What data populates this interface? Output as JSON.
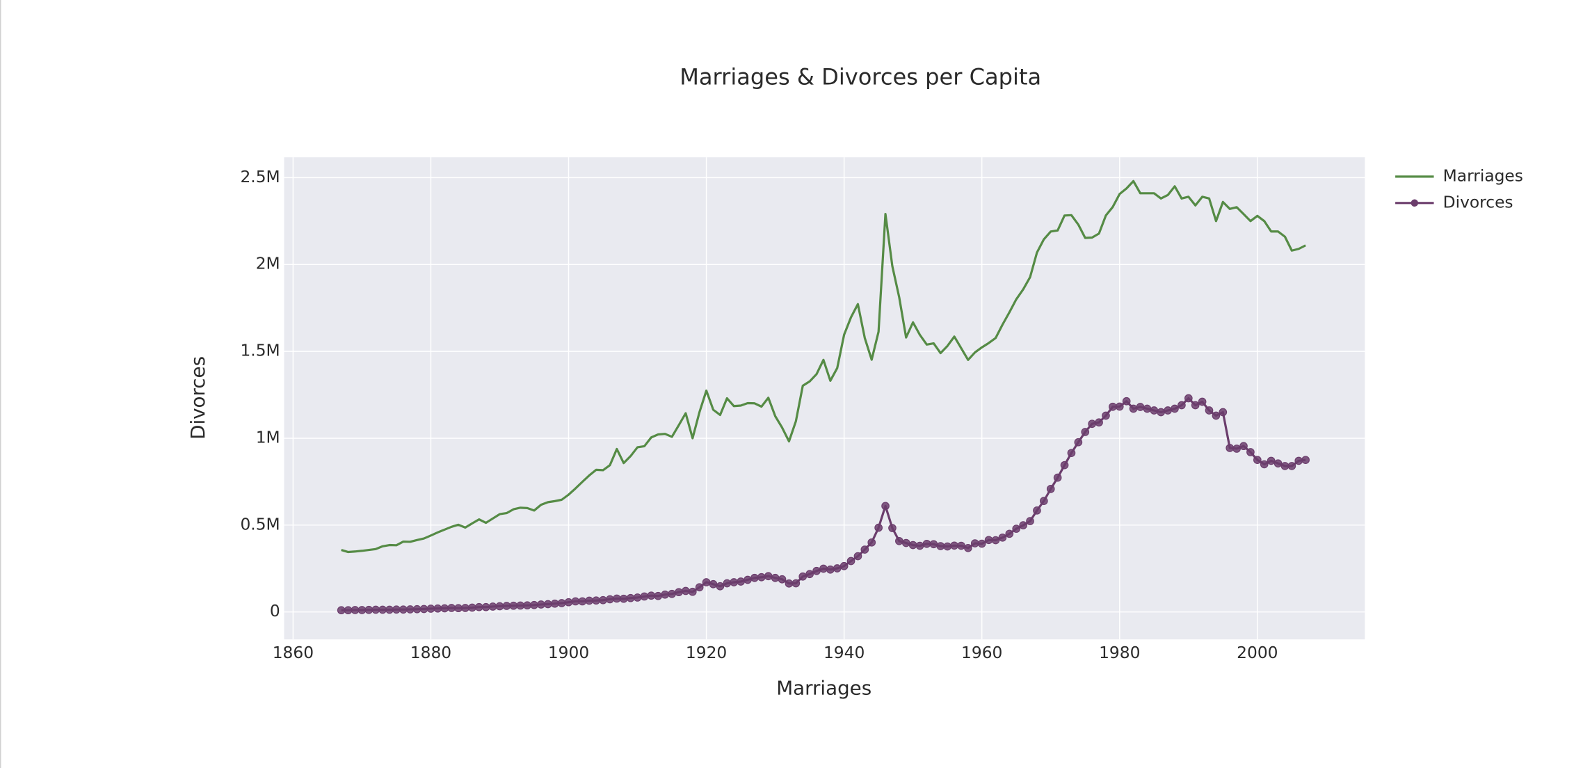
{
  "chart_data": {
    "type": "line",
    "title": "Marriages & Divorces per Capita",
    "xlabel": "Marriages",
    "ylabel": "Divorces",
    "x": [
      1867,
      1868,
      1869,
      1870,
      1871,
      1872,
      1873,
      1874,
      1875,
      1876,
      1877,
      1878,
      1879,
      1880,
      1881,
      1882,
      1883,
      1884,
      1885,
      1886,
      1887,
      1888,
      1889,
      1890,
      1891,
      1892,
      1893,
      1894,
      1895,
      1896,
      1897,
      1898,
      1899,
      1900,
      1901,
      1902,
      1903,
      1904,
      1905,
      1906,
      1907,
      1908,
      1909,
      1910,
      1911,
      1912,
      1913,
      1914,
      1915,
      1916,
      1917,
      1918,
      1919,
      1920,
      1921,
      1922,
      1923,
      1924,
      1925,
      1926,
      1927,
      1928,
      1929,
      1930,
      1931,
      1932,
      1933,
      1934,
      1935,
      1936,
      1937,
      1938,
      1939,
      1940,
      1941,
      1942,
      1943,
      1944,
      1945,
      1946,
      1947,
      1948,
      1949,
      1950,
      1951,
      1952,
      1953,
      1954,
      1955,
      1956,
      1957,
      1958,
      1959,
      1960,
      1961,
      1962,
      1963,
      1964,
      1965,
      1966,
      1967,
      1968,
      1969,
      1970,
      1971,
      1972,
      1973,
      1974,
      1975,
      1976,
      1977,
      1978,
      1979,
      1980,
      1981,
      1982,
      1983,
      1984,
      1985,
      1986,
      1987,
      1988,
      1989,
      1990,
      1991,
      1992,
      1993,
      1994,
      1995,
      1996,
      1997,
      1998,
      1999,
      2000,
      2001,
      2002,
      2003,
      2004,
      2005,
      2006,
      2007
    ],
    "series": [
      {
        "name": "Marriages",
        "color": "#558b45",
        "markers": false,
        "values": [
          357000,
          345000,
          348000,
          352000,
          357000,
          362000,
          378000,
          385000,
          384000,
          405000,
          404000,
          414000,
          423000,
          440000,
          458000,
          474000,
          490000,
          502000,
          486000,
          510000,
          533000,
          513000,
          538000,
          563000,
          569000,
          591000,
          600000,
          598000,
          584000,
          617000,
          632000,
          638000,
          646000,
          675000,
          711000,
          749000,
          786000,
          818000,
          816000,
          845000,
          938000,
          857000,
          897000,
          948000,
          954000,
          1005000,
          1022000,
          1025000,
          1008000,
          1075000,
          1144000,
          1000000,
          1150000,
          1274000,
          1164000,
          1134000,
          1230000,
          1185000,
          1188000,
          1202000,
          1201000,
          1182000,
          1233000,
          1127000,
          1061000,
          982000,
          1098000,
          1302000,
          1327000,
          1369000,
          1451000,
          1331000,
          1404000,
          1596000,
          1696000,
          1772000,
          1577000,
          1452000,
          1613000,
          2291000,
          1991000,
          1811000,
          1580000,
          1667000,
          1595000,
          1539000,
          1546000,
          1490000,
          1531000,
          1585000,
          1518000,
          1451000,
          1494000,
          1523000,
          1548000,
          1577000,
          1654000,
          1725000,
          1800000,
          1857000,
          1927000,
          2069000,
          2145000,
          2190000,
          2196000,
          2282000,
          2284000,
          2230000,
          2153000,
          2155000,
          2178000,
          2282000,
          2331000,
          2406000,
          2438000,
          2480000,
          2410000,
          2410000,
          2410000,
          2380000,
          2400000,
          2450000,
          2380000,
          2390000,
          2340000,
          2390000,
          2380000,
          2250000,
          2360000,
          2320000,
          2330000,
          2290000,
          2250000,
          2280000,
          2250000,
          2190000,
          2190000,
          2160000,
          2080000,
          2090000,
          2110000
        ]
      },
      {
        "name": "Divorces",
        "color": "#6b3d6c",
        "markers": true,
        "values": [
          10000,
          10000,
          11000,
          11000,
          12000,
          13000,
          13000,
          13000,
          14000,
          14000,
          15000,
          16000,
          17000,
          19000,
          20000,
          21000,
          23000,
          22000,
          23000,
          25000,
          28000,
          28000,
          31000,
          33000,
          35000,
          36000,
          37000,
          38000,
          40000,
          43000,
          45000,
          48000,
          51000,
          56000,
          61000,
          61000,
          65000,
          66000,
          68000,
          73000,
          77000,
          76000,
          80000,
          83000,
          89000,
          94000,
          92000,
          100000,
          104000,
          114000,
          121000,
          116000,
          142000,
          171000,
          160000,
          148000,
          165000,
          171000,
          175000,
          185000,
          196000,
          200000,
          206000,
          196000,
          188000,
          164000,
          165000,
          204000,
          218000,
          236000,
          249000,
          244000,
          251000,
          264000,
          293000,
          321000,
          359000,
          400000,
          485000,
          610000,
          483000,
          408000,
          397000,
          385000,
          381000,
          392000,
          390000,
          379000,
          377000,
          382000,
          381000,
          368000,
          395000,
          393000,
          414000,
          413000,
          428000,
          450000,
          479000,
          499000,
          523000,
          584000,
          639000,
          708000,
          773000,
          845000,
          915000,
          977000,
          1036000,
          1083000,
          1091000,
          1130000,
          1181000,
          1182000,
          1213000,
          1170000,
          1180000,
          1170000,
          1160000,
          1150000,
          1160000,
          1170000,
          1190000,
          1230000,
          1190000,
          1210000,
          1160000,
          1130000,
          1150000,
          944000,
          940000,
          955000,
          920000,
          875000,
          850000,
          870000,
          855000,
          840000,
          840000,
          870000,
          875000
        ]
      }
    ],
    "xlim": [
      1858.7,
      2015.6
    ],
    "xticks": [
      1860,
      1880,
      1900,
      1920,
      1940,
      1960,
      1980,
      2000
    ],
    "ylim": [
      -158000,
      2617000
    ],
    "yticks": [
      0,
      {
        "value": 500000,
        "label": "0.5M"
      },
      {
        "value": 1000000,
        "label": "1M"
      },
      {
        "value": 1500000,
        "label": "1.5M"
      },
      {
        "value": 2000000,
        "label": "2M"
      },
      {
        "value": 2500000,
        "label": "2.5M"
      }
    ],
    "grid": true,
    "legend": "top-right"
  }
}
